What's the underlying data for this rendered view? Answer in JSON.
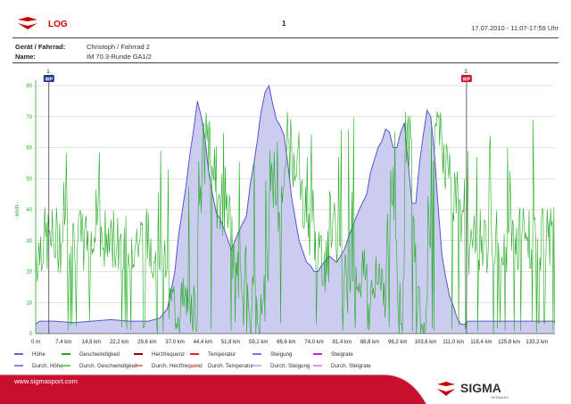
{
  "header": {
    "title": "LOG",
    "page_number": "1",
    "datetime": "17.07.2010 - 11:07-17:59 Uhr"
  },
  "meta": {
    "device_label": "Gerät / Fahrrad:",
    "device_value": "Christoph / Fahrrad 2",
    "name_label": "Name:",
    "name_value": "IM 70.3-Runde GA1/2"
  },
  "legend": [
    {
      "label": "Höhe",
      "color": "#6666cc"
    },
    {
      "label": "Geschwindigkeit",
      "color": "#22aa22"
    },
    {
      "label": "Herzfrequenz",
      "color": "#990000"
    },
    {
      "label": "Temperatur",
      "color": "#dd2222"
    },
    {
      "label": "Steigung",
      "color": "#7777dd"
    },
    {
      "label": "Steigrate",
      "color": "#cc22cc"
    },
    {
      "label": "Durch. Höhe",
      "color": "#8888cc"
    },
    {
      "label": "Durch. Geschwindigkeit",
      "color": "#77cc77"
    },
    {
      "label": "Durch. Herzfrequenz",
      "color": "#dd8888"
    },
    {
      "label": "Durch. Temperatur",
      "color": "#ee9999"
    },
    {
      "label": "Durch. Steigung",
      "color": "#bbbbee"
    },
    {
      "label": "Durch. Steigrate",
      "color": "#dd99dd"
    }
  ],
  "footer": {
    "url": "www.sigmasport.com",
    "brand": "SIGMA",
    "brand_sub": "GERMANY"
  },
  "chart_data": {
    "type": "area",
    "ylabel": "- km/h -",
    "ylim": [
      0,
      80
    ],
    "yticks": [
      0,
      10,
      20,
      30,
      40,
      50,
      60,
      70,
      80
    ],
    "xlim": [
      0,
      138
    ],
    "xticks": [
      0,
      7.4,
      14.8,
      22.2,
      29.6,
      37.0,
      44.4,
      51.8,
      59.2,
      66.6,
      74.0,
      81.4,
      88.8,
      96.2,
      103.6,
      111.0,
      118.4,
      125.8,
      133.2
    ],
    "xtick_labels": [
      "0 m",
      "7,4 km",
      "14,8 km",
      "22,2 km",
      "29,6 km",
      "37,0 km",
      "44,4 km",
      "51,8 km",
      "59,2 km",
      "66,6 km",
      "74,0 km",
      "81,4 km",
      "88,8 km",
      "96,2 km",
      "103,6 km",
      "111,0 km",
      "118,4 km",
      "125,8 km",
      "133,2 km"
    ],
    "grid": true,
    "waypoints": [
      {
        "label": "1.",
        "badge": "WP",
        "x": 3.5
      },
      {
        "label": "2.",
        "badge": "WP",
        "x": 114.5
      }
    ],
    "series": [
      {
        "name": "Höhe",
        "color": "#5555cc",
        "fill": "#ccccf0",
        "x": [
          0,
          1,
          5,
          10,
          15,
          20,
          25,
          30,
          33,
          35,
          37,
          38,
          40,
          41,
          42,
          43,
          44,
          45,
          46,
          47,
          48,
          49,
          50,
          52,
          54,
          56,
          57,
          58,
          59,
          59.5,
          60,
          61,
          62,
          63,
          64,
          65,
          66,
          67,
          68,
          70,
          72,
          73,
          74,
          75,
          76,
          78,
          80,
          82,
          84,
          86,
          88,
          89,
          90,
          91,
          92,
          93,
          94,
          95,
          96,
          97,
          98,
          99,
          100,
          101,
          102,
          103,
          104,
          105,
          106,
          107,
          108,
          109,
          110,
          111,
          112,
          113,
          114,
          115,
          116,
          120,
          125,
          130,
          135,
          138
        ],
        "values": [
          3,
          4,
          4,
          3.5,
          4,
          4.5,
          4,
          4,
          5,
          8,
          20,
          32,
          48,
          58,
          66,
          75,
          70,
          63,
          52,
          45,
          39,
          37,
          34,
          27,
          33,
          38,
          48,
          55,
          63,
          68,
          72,
          78,
          80,
          74,
          69,
          67,
          64,
          55,
          44,
          30,
          23,
          22,
          20,
          20,
          22,
          25,
          23,
          27,
          34,
          40,
          45,
          52,
          56,
          60,
          62,
          66,
          65,
          60,
          60,
          65,
          68,
          55,
          42,
          42,
          55,
          64,
          72,
          70,
          58,
          40,
          25,
          18,
          12,
          9,
          5,
          3,
          3,
          4,
          4,
          4,
          4,
          4,
          4,
          4
        ]
      },
      {
        "name": "Geschwindigkeit",
        "color": "#22aa22"
      }
    ]
  }
}
